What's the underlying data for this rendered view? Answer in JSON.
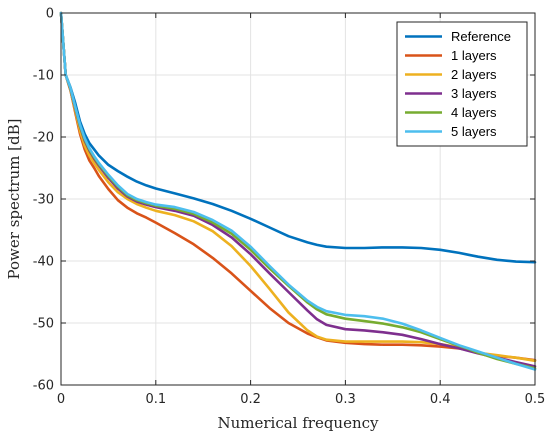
{
  "chart_data": {
    "type": "line",
    "title": "",
    "xlabel": "Numerical frequency",
    "ylabel": "Power spectrum [dB]",
    "xlim": [
      0,
      0.5
    ],
    "ylim": [
      -60,
      0
    ],
    "xticks": [
      0,
      0.1,
      0.2,
      0.3,
      0.4,
      0.5
    ],
    "xtick_labels": [
      "0",
      "0.1",
      "0.2",
      "0.3",
      "0.4",
      "0.5"
    ],
    "yticks": [
      0,
      -10,
      -20,
      -30,
      -40,
      -50,
      -60
    ],
    "ytick_labels": [
      "0",
      "-10",
      "-20",
      "-30",
      "-40",
      "-50",
      "-60"
    ],
    "grid": true,
    "legend_position": "top-right",
    "x": [
      0,
      0.005,
      0.01,
      0.015,
      0.02,
      0.025,
      0.03,
      0.035,
      0.04,
      0.05,
      0.06,
      0.07,
      0.08,
      0.09,
      0.1,
      0.12,
      0.14,
      0.16,
      0.18,
      0.2,
      0.22,
      0.24,
      0.26,
      0.27,
      0.28,
      0.3,
      0.32,
      0.34,
      0.36,
      0.38,
      0.4,
      0.42,
      0.43,
      0.44,
      0.46,
      0.48,
      0.5
    ],
    "series": [
      {
        "name": "Reference",
        "color": "#0072BD",
        "values": [
          0,
          -10,
          -12,
          -14.5,
          -17.5,
          -19.5,
          -21,
          -22,
          -23,
          -24.5,
          -25.5,
          -26.4,
          -27.2,
          -27.8,
          -28.3,
          -29.1,
          -29.9,
          -30.8,
          -31.9,
          -33.2,
          -34.6,
          -36,
          -37,
          -37.4,
          -37.7,
          -37.9,
          -37.9,
          -37.8,
          -37.8,
          -37.9,
          -38.2,
          -38.7,
          -39,
          -39.3,
          -39.8,
          -40.1,
          -40.2
        ]
      },
      {
        "name": "1 layers",
        "color": "#D95319",
        "values": [
          0,
          -10,
          -12.5,
          -16,
          -19.5,
          -22,
          -23.8,
          -25,
          -26.3,
          -28.4,
          -30.2,
          -31.4,
          -32.3,
          -33,
          -33.8,
          -35.5,
          -37.3,
          -39.5,
          -42,
          -44.8,
          -47.6,
          -50,
          -51.7,
          -52.3,
          -52.8,
          -53.2,
          -53.4,
          -53.5,
          -53.5,
          -53.6,
          -53.8,
          -54.1,
          -54.4,
          -54.8,
          -55.3,
          -55.6,
          -56
        ]
      },
      {
        "name": "2 layers",
        "color": "#EDB120",
        "values": [
          0,
          -10,
          -12.5,
          -15.7,
          -19,
          -21.4,
          -23,
          -24.2,
          -25.3,
          -27.3,
          -28.9,
          -30,
          -30.8,
          -31.4,
          -31.9,
          -32.6,
          -33.6,
          -35.2,
          -37.6,
          -40.8,
          -44.5,
          -48.3,
          -51.2,
          -52.2,
          -52.7,
          -53,
          -53,
          -53,
          -53,
          -53.1,
          -53.4,
          -53.9,
          -54.3,
          -54.8,
          -55.2,
          -55.6,
          -56.1
        ]
      },
      {
        "name": "3 layers",
        "color": "#7E2F8E",
        "values": [
          0,
          -10,
          -12.3,
          -15.3,
          -18.3,
          -20.6,
          -22.2,
          -23.5,
          -24.6,
          -26.6,
          -28.3,
          -29.6,
          -30.4,
          -30.9,
          -31.3,
          -31.9,
          -32.7,
          -34.2,
          -36.2,
          -38.9,
          -42,
          -45,
          -48,
          -49.4,
          -50.3,
          -51,
          -51.2,
          -51.5,
          -51.9,
          -52.6,
          -53.4,
          -54.1,
          -54.5,
          -54.9,
          -55.6,
          -56.3,
          -57
        ]
      },
      {
        "name": "4 layers",
        "color": "#77AC30",
        "values": [
          0,
          -10,
          -12.2,
          -15.2,
          -18.2,
          -20.4,
          -22,
          -23.3,
          -24.4,
          -26.3,
          -28,
          -29.4,
          -30.2,
          -30.7,
          -31.1,
          -31.6,
          -32.4,
          -33.8,
          -35.6,
          -38.2,
          -41.2,
          -44,
          -46.7,
          -47.8,
          -48.6,
          -49.3,
          -49.7,
          -50.1,
          -50.7,
          -51.5,
          -52.6,
          -53.7,
          -54.2,
          -54.8,
          -55.8,
          -56.6,
          -57.3
        ]
      },
      {
        "name": "5 layers",
        "color": "#4DBEEE",
        "values": [
          0,
          -10,
          -12.1,
          -15.1,
          -18,
          -20.2,
          -21.8,
          -23.1,
          -24.2,
          -26.1,
          -27.8,
          -29.2,
          -30,
          -30.5,
          -30.9,
          -31.3,
          -32.1,
          -33.4,
          -35.1,
          -37.7,
          -40.8,
          -43.8,
          -46.4,
          -47.4,
          -48.1,
          -48.7,
          -48.9,
          -49.3,
          -50.1,
          -51.2,
          -52.4,
          -53.6,
          -54.1,
          -54.6,
          -55.6,
          -56.6,
          -57.5
        ]
      }
    ]
  }
}
